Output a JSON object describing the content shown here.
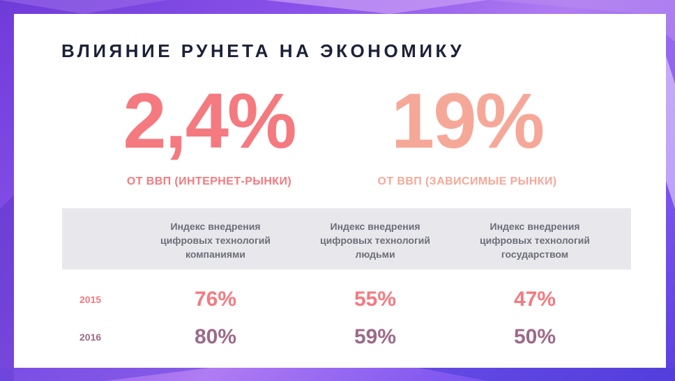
{
  "colors": {
    "accent_salmon": "#f47a80",
    "accent_peach": "#f6a898",
    "accent_mauve": "#9c6a8a",
    "title_color": "#1d2138"
  },
  "title": "ВЛИЯНИЕ РУНЕТА НА ЭКОНОМИКУ",
  "stats": [
    {
      "value": "2,4%",
      "label": "ОТ ВВП (ИНТЕРНЕТ-РЫНКИ)"
    },
    {
      "value": "19%",
      "label": "ОТ ВВП (ЗАВИСИМЫЕ РЫНКИ)"
    }
  ],
  "table": {
    "columns": [
      [
        "Индекс внедрения",
        "цифровых технологий",
        "компаниями"
      ],
      [
        "Индекс внедрения",
        "цифровых технологий",
        "людьми"
      ],
      [
        "Индекс внедрения",
        "цифровых технологий",
        "государством"
      ]
    ],
    "rows": [
      {
        "year": "2015",
        "values": [
          "76%",
          "55%",
          "47%"
        ]
      },
      {
        "year": "2016",
        "values": [
          "80%",
          "59%",
          "50%"
        ]
      }
    ]
  }
}
